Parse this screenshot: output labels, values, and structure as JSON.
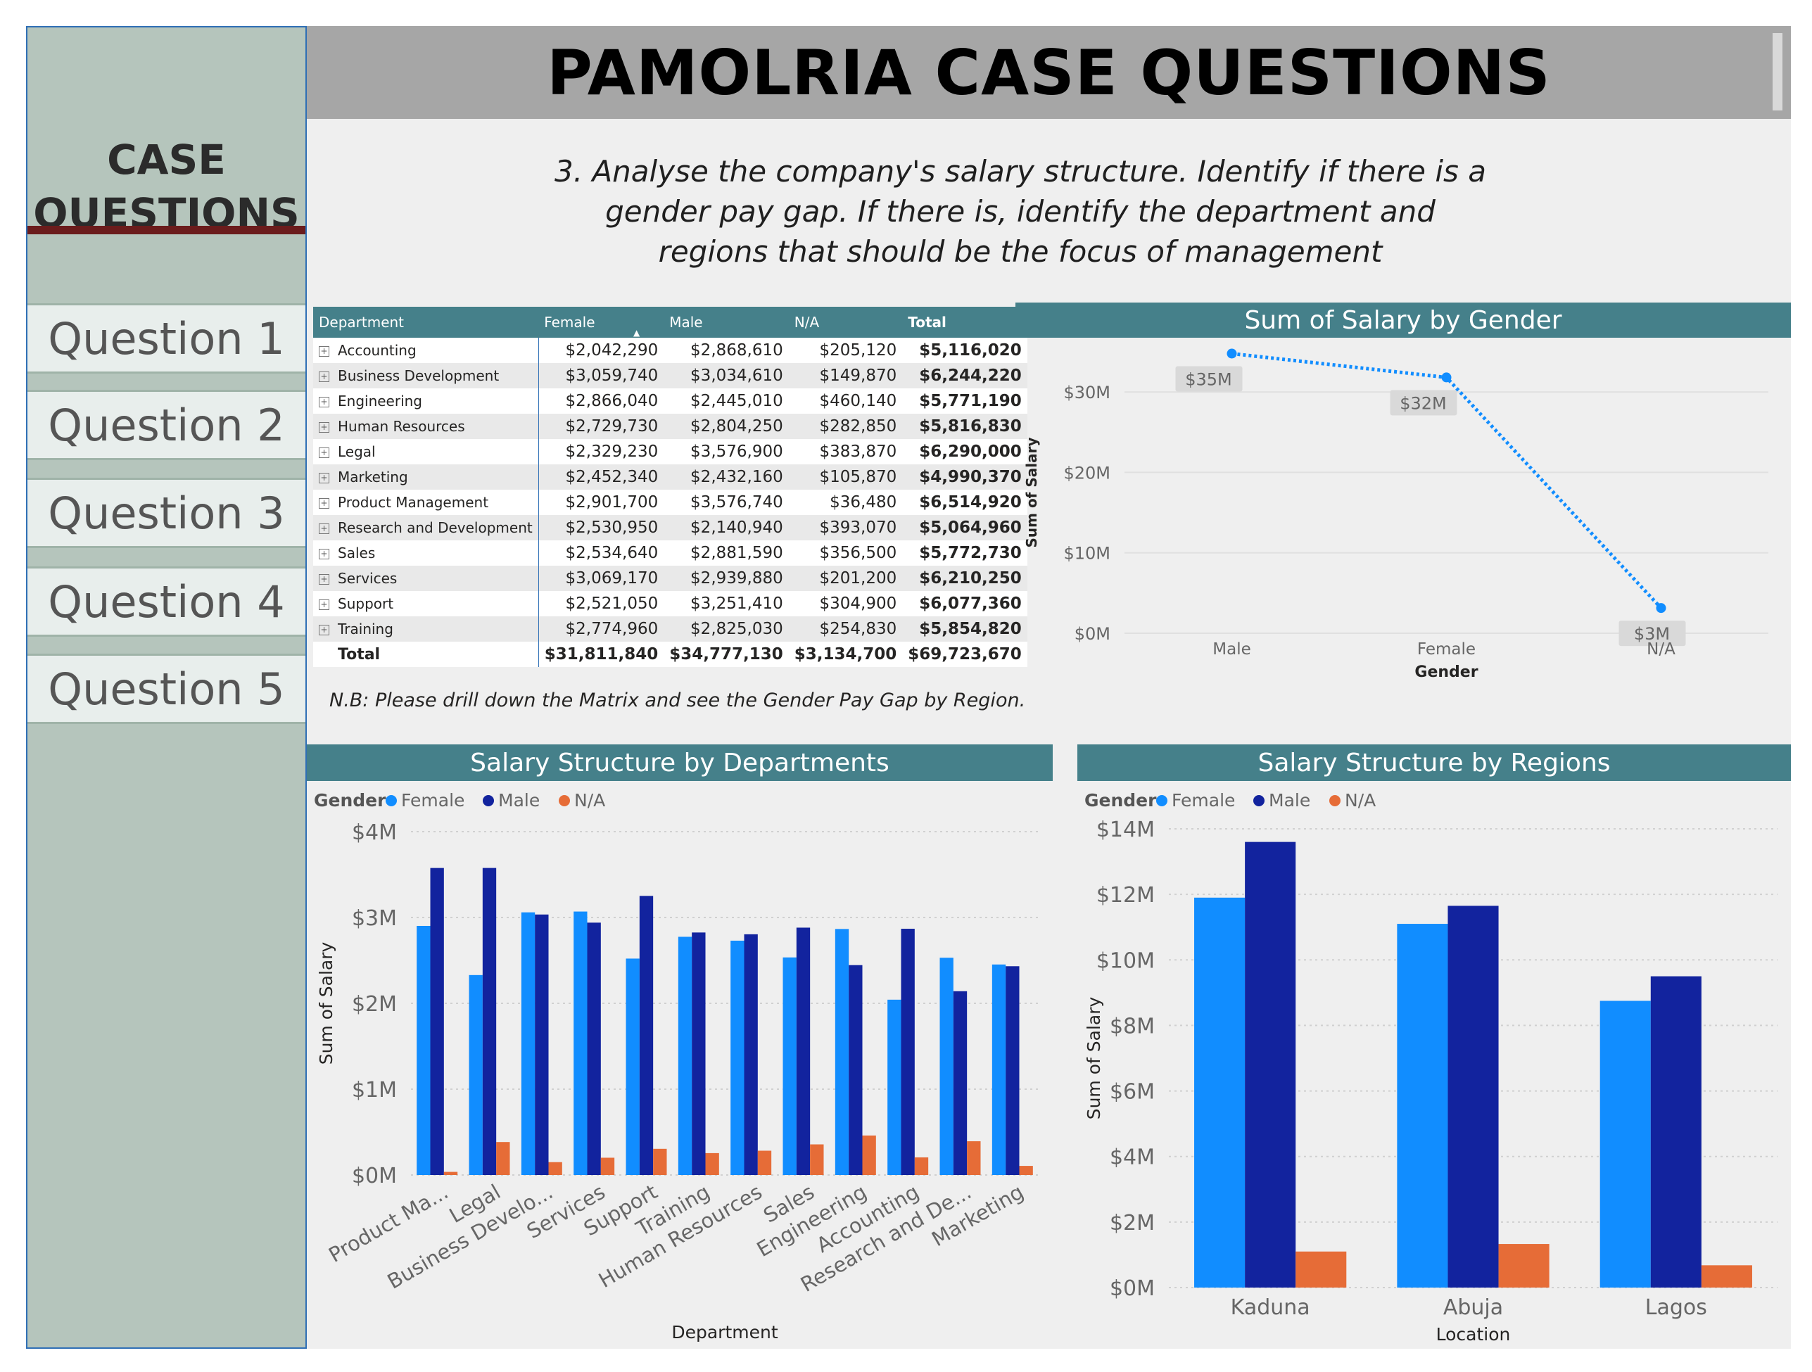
{
  "header": {
    "title": "PAMOLRIA CASE QUESTIONS"
  },
  "sidebar": {
    "title_line1": "CASE",
    "title_line2": "QUESTIONS",
    "items": [
      {
        "label": "Question 1"
      },
      {
        "label": "Question 2"
      },
      {
        "label": "Question 3"
      },
      {
        "label": "Question 4"
      },
      {
        "label": "Question 5"
      }
    ]
  },
  "question": {
    "line1": "3. Analyse the company's salary structure. Identify if there is a",
    "line2": "gender pay gap. If there is, identify the department and",
    "line3": "regions that should be the focus of management"
  },
  "note": "N.B: Please drill down the Matrix and see the Gender Pay Gap by Region.",
  "matrix": {
    "headers": [
      "Department",
      "Female",
      "Male",
      "N/A",
      "Total"
    ],
    "rows": [
      [
        "Accounting",
        "$2,042,290",
        "$2,868,610",
        "$205,120",
        "$5,116,020"
      ],
      [
        "Business Development",
        "$3,059,740",
        "$3,034,610",
        "$149,870",
        "$6,244,220"
      ],
      [
        "Engineering",
        "$2,866,040",
        "$2,445,010",
        "$460,140",
        "$5,771,190"
      ],
      [
        "Human Resources",
        "$2,729,730",
        "$2,804,250",
        "$282,850",
        "$5,816,830"
      ],
      [
        "Legal",
        "$2,329,230",
        "$3,576,900",
        "$383,870",
        "$6,290,000"
      ],
      [
        "Marketing",
        "$2,452,340",
        "$2,432,160",
        "$105,870",
        "$4,990,370"
      ],
      [
        "Product Management",
        "$2,901,700",
        "$3,576,740",
        "$36,480",
        "$6,514,920"
      ],
      [
        "Research and Development",
        "$2,530,950",
        "$2,140,940",
        "$393,070",
        "$5,064,960"
      ],
      [
        "Sales",
        "$2,534,640",
        "$2,881,590",
        "$356,500",
        "$5,772,730"
      ],
      [
        "Services",
        "$3,069,170",
        "$2,939,880",
        "$201,200",
        "$6,210,250"
      ],
      [
        "Support",
        "$2,521,050",
        "$3,251,410",
        "$304,900",
        "$6,077,360"
      ],
      [
        "Training",
        "$2,774,960",
        "$2,825,030",
        "$254,830",
        "$5,854,820"
      ]
    ],
    "total": [
      "Total",
      "$31,811,840",
      "$34,777,130",
      "$3,134,700",
      "$69,723,670"
    ]
  },
  "colors": {
    "female": "#118dff",
    "male": "#12239e",
    "na": "#e66c37",
    "header": "#45808a",
    "line": "#118dff"
  },
  "chart_data": [
    {
      "type": "line",
      "title": "Sum of Salary by Gender",
      "xlabel": "Gender",
      "ylabel": "Sum of Salary",
      "categories": [
        "Male",
        "Female",
        "N/A"
      ],
      "values": [
        34777130,
        31811840,
        3134700
      ],
      "data_labels": [
        "$35M",
        "$32M",
        "$3M"
      ],
      "yticks": [
        "$0M",
        "$10M",
        "$20M",
        "$30M"
      ],
      "ylim": [
        0,
        35000000
      ],
      "grid": true
    },
    {
      "type": "bar",
      "title": "Salary Structure by Departments",
      "legend_title": "Gender",
      "xlabel": "Department",
      "ylabel": "Sum of Salary",
      "categories": [
        "Product Ma...",
        "Legal",
        "Business Develo...",
        "Services",
        "Support",
        "Training",
        "Human Resources",
        "Sales",
        "Engineering",
        "Accounting",
        "Research and De...",
        "Marketing"
      ],
      "series": [
        {
          "name": "Female",
          "values": [
            2901700,
            2329230,
            3059740,
            3069170,
            2521050,
            2774960,
            2729730,
            2534640,
            2866040,
            2042290,
            2530950,
            2452340
          ]
        },
        {
          "name": "Male",
          "values": [
            3576740,
            3576900,
            3034610,
            2939880,
            3251410,
            2825030,
            2804250,
            2881590,
            2445010,
            2868610,
            2140940,
            2432160
          ]
        },
        {
          "name": "N/A",
          "values": [
            36480,
            383870,
            149870,
            201200,
            304900,
            254830,
            282850,
            356500,
            460140,
            205120,
            393070,
            105870
          ]
        }
      ],
      "yticks": [
        "$0M",
        "$1M",
        "$2M",
        "$3M",
        "$4M"
      ],
      "ylim": [
        0,
        4000000
      ],
      "legend": "top-left",
      "grid": true
    },
    {
      "type": "bar",
      "title": "Salary Structure by Regions",
      "legend_title": "Gender",
      "xlabel": "Location",
      "ylabel": "Sum of Salary",
      "categories": [
        "Kaduna",
        "Abuja",
        "Lagos"
      ],
      "series": [
        {
          "name": "Female",
          "values": [
            11900000,
            11100000,
            8750000
          ]
        },
        {
          "name": "Male",
          "values": [
            13600000,
            11650000,
            9500000
          ]
        },
        {
          "name": "N/A",
          "values": [
            1100000,
            1330000,
            680000
          ]
        }
      ],
      "yticks": [
        "$0M",
        "$2M",
        "$4M",
        "$6M",
        "$8M",
        "$10M",
        "$12M",
        "$14M"
      ],
      "ylim": [
        0,
        14000000
      ],
      "legend": "top-left",
      "grid": true
    }
  ]
}
